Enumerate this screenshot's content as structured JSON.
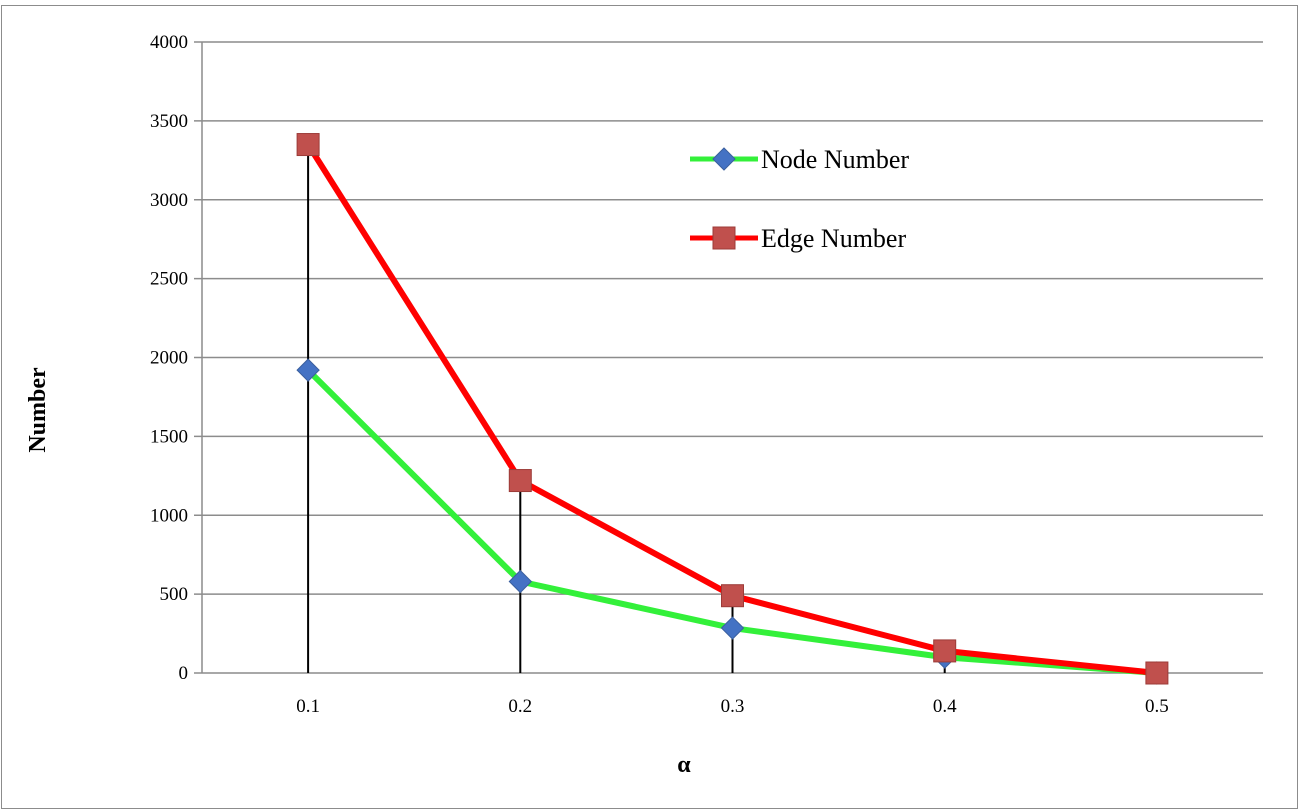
{
  "chart_data": {
    "type": "line",
    "x": [
      0.1,
      0.2,
      0.3,
      0.4,
      0.5
    ],
    "x_tick_labels": [
      "0.1",
      "0.2",
      "0.3",
      "0.4",
      "0.5"
    ],
    "y_tick_labels": [
      "0",
      "500",
      "1000",
      "1500",
      "2000",
      "2500",
      "3000",
      "3500",
      "4000"
    ],
    "ylim": [
      0,
      4000
    ],
    "xlabel": "α",
    "ylabel": "Number",
    "title": "",
    "grid": "horizontal",
    "legend_position": "top-right",
    "series": [
      {
        "name": "Node Number",
        "values": [
          1920,
          580,
          285,
          100,
          0
        ],
        "line_color": "#33f03a",
        "marker": "diamond",
        "marker_color": "#4472c4"
      },
      {
        "name": "Edge Number",
        "values": [
          3350,
          1220,
          490,
          140,
          0
        ],
        "line_color": "#ff0000",
        "marker": "square",
        "marker_color": "#c0504d"
      }
    ],
    "drop_lines": true
  }
}
